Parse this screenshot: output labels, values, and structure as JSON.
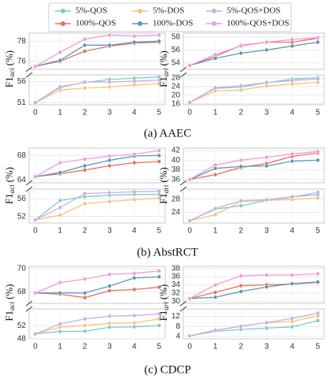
{
  "chart_data": [
    {
      "type": "line",
      "caption": "(a) AAEC",
      "ylabel": {
        "main": "F1",
        "sub": "aci",
        "unit": "(%)"
      },
      "x": [
        0,
        1,
        2,
        3,
        4,
        5
      ],
      "xticks": [
        0,
        1,
        2,
        3,
        4,
        5
      ],
      "xlim": [
        -0.25,
        5.25
      ],
      "panels": [
        {
          "ylim": [
            75.2,
            78.8
          ],
          "yticks": [
            76,
            78
          ]
        },
        {
          "ylim": [
            50.5,
            57.6
          ],
          "yticks": [
            51,
            56
          ]
        }
      ],
      "grid": true,
      "series": [
        {
          "name": "5%-QOS",
          "color": "#7ecbcb",
          "values": [
            51,
            54.8,
            55.8,
            56.5,
            56.8,
            57.1
          ]
        },
        {
          "name": "5%-DOS",
          "color": "#f7c27a",
          "values": [
            51,
            54.0,
            54.5,
            54.7,
            55.2,
            55.5
          ]
        },
        {
          "name": "5%-QOS+DOS",
          "color": "#c5b0e3",
          "values": [
            51,
            54.6,
            55.9,
            55.9,
            56.1,
            56.4
          ]
        },
        {
          "name": "100%-QOS",
          "color": "#e8705a",
          "values": [
            75.5,
            76.0,
            77.0,
            77.5,
            77.8,
            77.9
          ]
        },
        {
          "name": "100%-DOS",
          "color": "#5b97b8",
          "values": [
            75.5,
            76.1,
            77.6,
            77.6,
            77.9,
            78.0
          ]
        },
        {
          "name": "100%-QOS+DOS",
          "color": "#f29ad9",
          "values": [
            75.5,
            76.9,
            78.2,
            78.6,
            78.5,
            78.6
          ]
        }
      ]
    },
    {
      "type": "line",
      "ylabel": {
        "main": "F1",
        "sub": "ari",
        "unit": "(%)"
      },
      "x": [
        0,
        1,
        2,
        3,
        4,
        5
      ],
      "xticks": [
        0,
        1,
        2,
        3,
        4,
        5
      ],
      "xlim": [
        -0.25,
        5.25
      ],
      "panels": [
        {
          "ylim": [
            53,
            58.6
          ],
          "yticks": [
            54,
            56,
            58
          ]
        },
        {
          "ylim": [
            15.5,
            29.5
          ],
          "yticks": [
            16,
            20,
            24,
            28
          ]
        }
      ],
      "grid": true,
      "series": [
        {
          "name": "5%-QOS",
          "color": "#7ecbcb",
          "values": [
            16.6,
            23.2,
            23.8,
            25.8,
            27.5,
            28.2
          ]
        },
        {
          "name": "5%-DOS",
          "color": "#f7c27a",
          "values": [
            16.6,
            22.0,
            22.4,
            24.3,
            25.2,
            26.0
          ]
        },
        {
          "name": "5%-QOS+DOS",
          "color": "#c5b0e3",
          "values": [
            16.6,
            23.5,
            24.4,
            25.9,
            26.8,
            27.6
          ]
        },
        {
          "name": "100%-QOS",
          "color": "#e8705a",
          "values": [
            53.6,
            55.0,
            56.7,
            57.2,
            57.2,
            57.8
          ]
        },
        {
          "name": "100%-DOS",
          "color": "#5b97b8",
          "values": [
            53.6,
            54.7,
            55.5,
            56.0,
            56.6,
            57.2
          ]
        },
        {
          "name": "100%-QOS+DOS",
          "color": "#f29ad9",
          "values": [
            53.6,
            55.3,
            56.6,
            57.2,
            57.6,
            57.9
          ]
        }
      ]
    },
    {
      "type": "line",
      "caption": "(b) AbstRCT",
      "ylabel": {
        "main": "F1",
        "sub": "aci",
        "unit": "(%)"
      },
      "x": [
        0,
        1,
        2,
        3,
        4,
        5
      ],
      "xticks": [
        0,
        1,
        2,
        3,
        4,
        5
      ],
      "xlim": [
        -0.25,
        5.25
      ],
      "panels": [
        {
          "ylim": [
            63.5,
            69.2
          ],
          "yticks": [
            64,
            68
          ]
        },
        {
          "ylim": [
            50.5,
            58.2
          ],
          "yticks": [
            52,
            56
          ]
        }
      ],
      "grid": true,
      "series": [
        {
          "name": "5%-QOS",
          "color": "#7ecbcb",
          "values": [
            51.2,
            55.6,
            56.5,
            56.8,
            57.0,
            57.0
          ]
        },
        {
          "name": "5%-DOS",
          "color": "#f7c27a",
          "values": [
            51.2,
            52.3,
            54.9,
            55.4,
            55.8,
            56.2
          ]
        },
        {
          "name": "5%-QOS+DOS",
          "color": "#c5b0e3",
          "values": [
            51.2,
            54.0,
            57.2,
            57.4,
            57.6,
            57.7
          ]
        },
        {
          "name": "100%-QOS",
          "color": "#e8705a",
          "values": [
            64.5,
            65.0,
            65.6,
            66.3,
            66.8,
            67.0
          ]
        },
        {
          "name": "100%-DOS",
          "color": "#5b97b8",
          "values": [
            64.5,
            65.2,
            66.3,
            67.2,
            67.9,
            68.0
          ]
        },
        {
          "name": "100%-QOS+DOS",
          "color": "#f29ad9",
          "values": [
            64.5,
            66.8,
            67.4,
            67.9,
            68.2,
            68.8
          ]
        }
      ]
    },
    {
      "type": "line",
      "ylabel": {
        "main": "F1",
        "sub": "ari",
        "unit": "(%)"
      },
      "x": [
        0,
        1,
        2,
        3,
        4,
        5
      ],
      "xticks": [
        0,
        1,
        2,
        3,
        4,
        5
      ],
      "xlim": [
        -0.25,
        5.25
      ],
      "panels": [
        {
          "ylim": [
            35.3,
            42.5
          ],
          "yticks": [
            36,
            38,
            40,
            42
          ]
        },
        {
          "ylim": [
            20.8,
            31
          ],
          "yticks": [
            24,
            28
          ]
        }
      ],
      "grid": true,
      "series": [
        {
          "name": "5%-QOS",
          "color": "#7ecbcb",
          "values": [
            21.5,
            25.0,
            26.0,
            27.6,
            28.6,
            30.0
          ]
        },
        {
          "name": "5%-DOS",
          "color": "#f7c27a",
          "values": [
            21.5,
            23.3,
            27.3,
            27.6,
            27.9,
            28.3
          ]
        },
        {
          "name": "5%-QOS+DOS",
          "color": "#c5b0e3",
          "values": [
            21.5,
            25.2,
            27.5,
            27.8,
            28.7,
            29.3
          ]
        },
        {
          "name": "100%-QOS",
          "color": "#e8705a",
          "values": [
            36.0,
            37.0,
            38.5,
            39.3,
            40.8,
            41.5
          ]
        },
        {
          "name": "100%-DOS",
          "color": "#5b97b8",
          "values": [
            36.0,
            38.3,
            38.7,
            38.8,
            39.8,
            40.0
          ]
        },
        {
          "name": "100%-QOS+DOS",
          "color": "#f29ad9",
          "values": [
            36.0,
            39.0,
            40.0,
            40.6,
            41.3,
            41.8
          ]
        }
      ]
    },
    {
      "type": "line",
      "caption": "(c) CDCP",
      "ylabel": {
        "main": "F1",
        "sub": "aci",
        "unit": "(%)"
      },
      "x": [
        0,
        1,
        2,
        3,
        4,
        5
      ],
      "xticks": [
        0,
        1,
        2,
        3,
        4,
        5
      ],
      "xlim": [
        -0.25,
        5.25
      ],
      "panels": [
        {
          "ylim": [
            67,
            70.2
          ],
          "yticks": [
            68,
            70
          ]
        },
        {
          "ylim": [
            48,
            57
          ],
          "yticks": [
            48,
            52
          ]
        }
      ],
      "grid": true,
      "series": [
        {
          "name": "5%-QOS",
          "color": "#7ecbcb",
          "values": [
            49.5,
            50.2,
            50.3,
            51.5,
            51.6,
            52.0
          ]
        },
        {
          "name": "5%-DOS",
          "color": "#f7c27a",
          "values": [
            49.5,
            51.5,
            52.0,
            52.7,
            52.8,
            54.0
          ]
        },
        {
          "name": "5%-QOS+DOS",
          "color": "#c5b0e3",
          "values": [
            49.5,
            52.5,
            54.0,
            54.8,
            55.0,
            55.5
          ]
        },
        {
          "name": "100%-QOS",
          "color": "#e8705a",
          "values": [
            67.9,
            67.8,
            67.5,
            68.1,
            68.2,
            68.4
          ]
        },
        {
          "name": "100%-DOS",
          "color": "#5b97b8",
          "values": [
            67.9,
            67.9,
            67.9,
            68.5,
            69.2,
            69.3
          ]
        },
        {
          "name": "100%-QOS+DOS",
          "color": "#f29ad9",
          "values": [
            67.9,
            68.8,
            69.1,
            69.5,
            69.6,
            69.8
          ]
        }
      ]
    },
    {
      "type": "line",
      "ylabel": {
        "main": "F1",
        "sub": "ari",
        "unit": "(%)"
      },
      "x": [
        0,
        1,
        2,
        3,
        4,
        5
      ],
      "xticks": [
        0,
        1,
        2,
        3,
        4,
        5
      ],
      "xlim": [
        -0.25,
        5.25
      ],
      "panels": [
        {
          "ylim": [
            29.5,
            38.5
          ],
          "yticks": [
            30,
            32,
            34,
            36,
            38
          ]
        },
        {
          "ylim": [
            3,
            15
          ],
          "yticks": [
            4,
            8,
            12
          ]
        }
      ],
      "grid": true,
      "series": [
        {
          "name": "5%-QOS",
          "color": "#7ecbcb",
          "values": [
            4.2,
            6.0,
            6.8,
            7.3,
            7.8,
            10.3
          ]
        },
        {
          "name": "5%-DOS",
          "color": "#f7c27a",
          "values": [
            4.2,
            6.3,
            8.2,
            9.4,
            10.0,
            12.2
          ]
        },
        {
          "name": "5%-QOS+DOS",
          "color": "#c5b0e3",
          "values": [
            4.2,
            6.5,
            8.0,
            9.5,
            11.2,
            13.3
          ]
        },
        {
          "name": "100%-QOS",
          "color": "#e8705a",
          "values": [
            30.7,
            32.2,
            33.8,
            34.0,
            34.2,
            34.6
          ]
        },
        {
          "name": "100%-DOS",
          "color": "#5b97b8",
          "values": [
            30.7,
            31.0,
            32.4,
            33.5,
            34.3,
            34.7
          ]
        },
        {
          "name": "100%-QOS+DOS",
          "color": "#f29ad9",
          "values": [
            30.7,
            34.0,
            36.2,
            36.4,
            36.4,
            36.7
          ]
        }
      ]
    }
  ]
}
